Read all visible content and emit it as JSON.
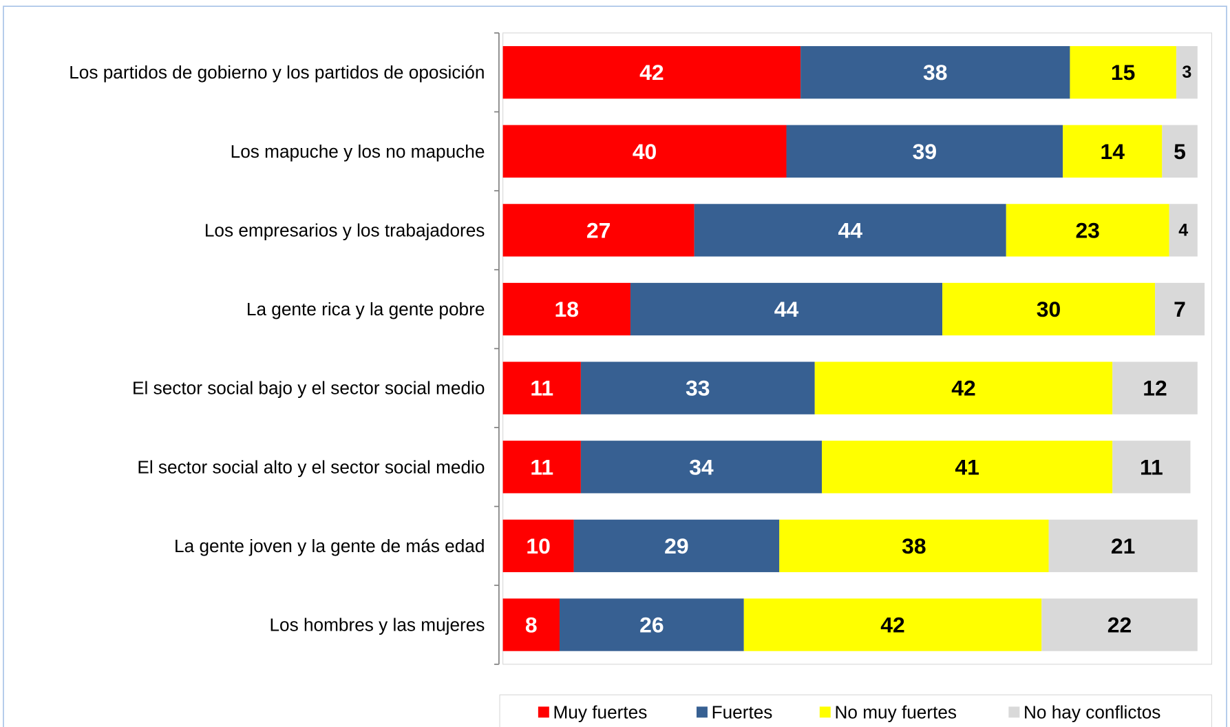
{
  "chart_data": {
    "type": "stacked-barh",
    "categories": [
      "Los partidos de gobierno y los partidos de oposición",
      "Los mapuche y los no mapuche",
      "Los empresarios y los trabajadores",
      "La gente rica y la gente pobre",
      "El sector social bajo y el sector social medio",
      "El sector social alto y el sector social medio",
      "La gente joven y la gente de más edad",
      "Los hombres y las mujeres"
    ],
    "series": [
      {
        "name": "Muy fuertes",
        "color": "#ff0000",
        "values": [
          42,
          40,
          27,
          18,
          11,
          11,
          10,
          8
        ]
      },
      {
        "name": "Fuertes",
        "color": "#376092",
        "values": [
          38,
          39,
          44,
          44,
          33,
          34,
          29,
          26
        ]
      },
      {
        "name": "No muy fuertes",
        "color": "#ffff00",
        "values": [
          15,
          14,
          23,
          30,
          42,
          41,
          38,
          42
        ]
      },
      {
        "name": "No hay conflictos",
        "color": "#d9d9d9",
        "values": [
          3,
          5,
          4,
          7,
          12,
          11,
          21,
          22
        ]
      }
    ],
    "xlim": [
      0,
      100
    ],
    "legend": "bottom"
  }
}
